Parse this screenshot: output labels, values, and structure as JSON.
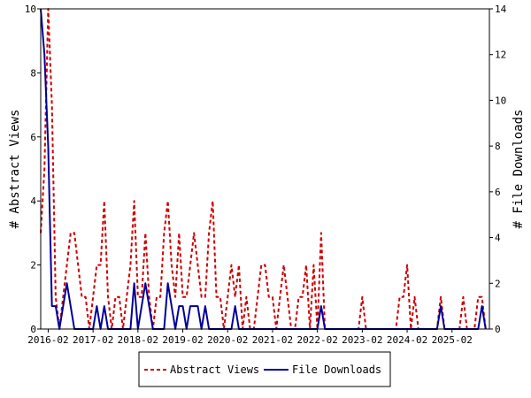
{
  "chart_data": {
    "type": "line",
    "title": "",
    "xlabel": "",
    "ylabel": "# Abstract Views",
    "y2label": "# File Downloads",
    "ylim": [
      0,
      10
    ],
    "y2lim": [
      0,
      14
    ],
    "yticks": [
      "0",
      "2",
      "4",
      "6",
      "8",
      "10"
    ],
    "y2ticks": [
      "0",
      "2",
      "4",
      "6",
      "8",
      "10",
      "12",
      "14"
    ],
    "x_start": "2015-12",
    "x_end": "2025-12",
    "xticks": [
      "2016-02",
      "2017-02",
      "2018-02",
      "2019-02",
      "2020-02",
      "2021-02",
      "2022-02",
      "2023-02",
      "2024-02",
      "2025-02"
    ],
    "grid": false,
    "legend_position": "bottom",
    "colors": {
      "abstract_views": "#cc0000",
      "file_downloads": "#000099"
    },
    "series": [
      {
        "name": "Abstract Views",
        "axis": "left",
        "style": "dashed",
        "points": [
          [
            "2015-12",
            3
          ],
          [
            "2016-01",
            5
          ],
          [
            "2016-02",
            10
          ],
          [
            "2016-03",
            7
          ],
          [
            "2016-04",
            1
          ],
          [
            "2016-05",
            0
          ],
          [
            "2016-06",
            1
          ],
          [
            "2016-07",
            2
          ],
          [
            "2016-08",
            3
          ],
          [
            "2016-09",
            3
          ],
          [
            "2016-10",
            2
          ],
          [
            "2016-11",
            1
          ],
          [
            "2016-12",
            1
          ],
          [
            "2017-01",
            0
          ],
          [
            "2017-02",
            1
          ],
          [
            "2017-03",
            2
          ],
          [
            "2017-04",
            2
          ],
          [
            "2017-05",
            4
          ],
          [
            "2017-06",
            1
          ],
          [
            "2017-07",
            0
          ],
          [
            "2017-08",
            1
          ],
          [
            "2017-09",
            1
          ],
          [
            "2017-10",
            0
          ],
          [
            "2017-11",
            1
          ],
          [
            "2017-12",
            2
          ],
          [
            "2018-01",
            4
          ],
          [
            "2018-02",
            1
          ],
          [
            "2018-03",
            1
          ],
          [
            "2018-04",
            3
          ],
          [
            "2018-05",
            1
          ],
          [
            "2018-06",
            0
          ],
          [
            "2018-07",
            1
          ],
          [
            "2018-08",
            1
          ],
          [
            "2018-09",
            3
          ],
          [
            "2018-10",
            4
          ],
          [
            "2018-11",
            2
          ],
          [
            "2018-12",
            1
          ],
          [
            "2019-01",
            3
          ],
          [
            "2019-02",
            1
          ],
          [
            "2019-03",
            1
          ],
          [
            "2019-04",
            2
          ],
          [
            "2019-05",
            3
          ],
          [
            "2019-06",
            2
          ],
          [
            "2019-07",
            1
          ],
          [
            "2019-08",
            1
          ],
          [
            "2019-09",
            3
          ],
          [
            "2019-10",
            4
          ],
          [
            "2019-11",
            1
          ],
          [
            "2019-12",
            1
          ],
          [
            "2020-01",
            0
          ],
          [
            "2020-02",
            1
          ],
          [
            "2020-03",
            2
          ],
          [
            "2020-04",
            1
          ],
          [
            "2020-05",
            2
          ],
          [
            "2020-06",
            0
          ],
          [
            "2020-07",
            1
          ],
          [
            "2020-08",
            0
          ],
          [
            "2020-09",
            0
          ],
          [
            "2020-10",
            1
          ],
          [
            "2020-11",
            2
          ],
          [
            "2020-12",
            2
          ],
          [
            "2021-01",
            1
          ],
          [
            "2021-02",
            1
          ],
          [
            "2021-03",
            0
          ],
          [
            "2021-04",
            1
          ],
          [
            "2021-05",
            2
          ],
          [
            "2021-06",
            1
          ],
          [
            "2021-07",
            0
          ],
          [
            "2021-08",
            0
          ],
          [
            "2021-09",
            1
          ],
          [
            "2021-10",
            1
          ],
          [
            "2021-11",
            2
          ],
          [
            "2021-12",
            0
          ],
          [
            "2022-01",
            2
          ],
          [
            "2022-02",
            0
          ],
          [
            "2022-03",
            3
          ],
          [
            "2022-04",
            0
          ],
          [
            "2022-05",
            0
          ],
          [
            "2022-06",
            0
          ],
          [
            "2022-07",
            0
          ],
          [
            "2022-08",
            0
          ],
          [
            "2022-09",
            0
          ],
          [
            "2022-10",
            0
          ],
          [
            "2022-11",
            0
          ],
          [
            "2022-12",
            0
          ],
          [
            "2023-01",
            0
          ],
          [
            "2023-02",
            1
          ],
          [
            "2023-03",
            0
          ],
          [
            "2023-04",
            0
          ],
          [
            "2023-05",
            0
          ],
          [
            "2023-06",
            0
          ],
          [
            "2023-07",
            0
          ],
          [
            "2023-08",
            0
          ],
          [
            "2023-09",
            0
          ],
          [
            "2023-10",
            0
          ],
          [
            "2023-11",
            0
          ],
          [
            "2023-12",
            1
          ],
          [
            "2024-01",
            1
          ],
          [
            "2024-02",
            2
          ],
          [
            "2024-03",
            0
          ],
          [
            "2024-04",
            1
          ],
          [
            "2024-05",
            0
          ],
          [
            "2024-06",
            0
          ],
          [
            "2024-07",
            0
          ],
          [
            "2024-08",
            0
          ],
          [
            "2024-09",
            0
          ],
          [
            "2024-10",
            0
          ],
          [
            "2024-11",
            1
          ],
          [
            "2024-12",
            0
          ],
          [
            "2025-01",
            0
          ],
          [
            "2025-02",
            0
          ],
          [
            "2025-03",
            0
          ],
          [
            "2025-04",
            0
          ],
          [
            "2025-05",
            1
          ],
          [
            "2025-06",
            0
          ],
          [
            "2025-07",
            0
          ],
          [
            "2025-08",
            0
          ],
          [
            "2025-09",
            1
          ],
          [
            "2025-10",
            1
          ],
          [
            "2025-11",
            0
          ]
        ]
      },
      {
        "name": "File Downloads",
        "axis": "right",
        "style": "solid",
        "points": [
          [
            "2015-12",
            14
          ],
          [
            "2016-01",
            12
          ],
          [
            "2016-02",
            8
          ],
          [
            "2016-03",
            1
          ],
          [
            "2016-04",
            1
          ],
          [
            "2016-05",
            0
          ],
          [
            "2016-06",
            1
          ],
          [
            "2016-07",
            2
          ],
          [
            "2016-08",
            1
          ],
          [
            "2016-09",
            0
          ],
          [
            "2016-10",
            0
          ],
          [
            "2016-11",
            0
          ],
          [
            "2016-12",
            0
          ],
          [
            "2017-01",
            0
          ],
          [
            "2017-02",
            0
          ],
          [
            "2017-03",
            1
          ],
          [
            "2017-04",
            0
          ],
          [
            "2017-05",
            1
          ],
          [
            "2017-06",
            0
          ],
          [
            "2017-07",
            0
          ],
          [
            "2017-08",
            0
          ],
          [
            "2017-09",
            0
          ],
          [
            "2017-10",
            0
          ],
          [
            "2017-11",
            0
          ],
          [
            "2017-12",
            0
          ],
          [
            "2018-01",
            2
          ],
          [
            "2018-02",
            0
          ],
          [
            "2018-03",
            1
          ],
          [
            "2018-04",
            2
          ],
          [
            "2018-05",
            1
          ],
          [
            "2018-06",
            0
          ],
          [
            "2018-07",
            0
          ],
          [
            "2018-08",
            0
          ],
          [
            "2018-09",
            0
          ],
          [
            "2018-10",
            2
          ],
          [
            "2018-11",
            1
          ],
          [
            "2018-12",
            0
          ],
          [
            "2019-01",
            1
          ],
          [
            "2019-02",
            1
          ],
          [
            "2019-03",
            0
          ],
          [
            "2019-04",
            1
          ],
          [
            "2019-05",
            1
          ],
          [
            "2019-06",
            1
          ],
          [
            "2019-07",
            0
          ],
          [
            "2019-08",
            1
          ],
          [
            "2019-09",
            0
          ],
          [
            "2019-10",
            0
          ],
          [
            "2019-11",
            0
          ],
          [
            "2019-12",
            0
          ],
          [
            "2020-01",
            0
          ],
          [
            "2020-02",
            0
          ],
          [
            "2020-03",
            0
          ],
          [
            "2020-04",
            1
          ],
          [
            "2020-05",
            0
          ],
          [
            "2020-06",
            0
          ],
          [
            "2020-07",
            0
          ],
          [
            "2020-08",
            0
          ],
          [
            "2020-09",
            0
          ],
          [
            "2020-10",
            0
          ],
          [
            "2020-11",
            0
          ],
          [
            "2020-12",
            0
          ],
          [
            "2021-01",
            0
          ],
          [
            "2021-02",
            0
          ],
          [
            "2021-03",
            0
          ],
          [
            "2021-04",
            0
          ],
          [
            "2021-05",
            0
          ],
          [
            "2021-06",
            0
          ],
          [
            "2021-07",
            0
          ],
          [
            "2021-08",
            0
          ],
          [
            "2021-09",
            0
          ],
          [
            "2021-10",
            0
          ],
          [
            "2021-11",
            0
          ],
          [
            "2021-12",
            0
          ],
          [
            "2022-01",
            0
          ],
          [
            "2022-02",
            0
          ],
          [
            "2022-03",
            1
          ],
          [
            "2022-04",
            0
          ],
          [
            "2022-05",
            0
          ],
          [
            "2022-06",
            0
          ],
          [
            "2022-07",
            0
          ],
          [
            "2022-08",
            0
          ],
          [
            "2022-09",
            0
          ],
          [
            "2022-10",
            0
          ],
          [
            "2022-11",
            0
          ],
          [
            "2022-12",
            0
          ],
          [
            "2023-01",
            0
          ],
          [
            "2023-02",
            0
          ],
          [
            "2023-03",
            0
          ],
          [
            "2023-04",
            0
          ],
          [
            "2023-05",
            0
          ],
          [
            "2023-06",
            0
          ],
          [
            "2023-07",
            0
          ],
          [
            "2023-08",
            0
          ],
          [
            "2023-09",
            0
          ],
          [
            "2023-10",
            0
          ],
          [
            "2023-11",
            0
          ],
          [
            "2023-12",
            0
          ],
          [
            "2024-01",
            0
          ],
          [
            "2024-02",
            0
          ],
          [
            "2024-03",
            0
          ],
          [
            "2024-04",
            0
          ],
          [
            "2024-05",
            0
          ],
          [
            "2024-06",
            0
          ],
          [
            "2024-07",
            0
          ],
          [
            "2024-08",
            0
          ],
          [
            "2024-09",
            0
          ],
          [
            "2024-10",
            0
          ],
          [
            "2024-11",
            1
          ],
          [
            "2024-12",
            0
          ],
          [
            "2025-01",
            0
          ],
          [
            "2025-02",
            0
          ],
          [
            "2025-03",
            0
          ],
          [
            "2025-04",
            0
          ],
          [
            "2025-05",
            0
          ],
          [
            "2025-06",
            0
          ],
          [
            "2025-07",
            0
          ],
          [
            "2025-08",
            0
          ],
          [
            "2025-09",
            0
          ],
          [
            "2025-10",
            1
          ],
          [
            "2025-11",
            0
          ]
        ]
      }
    ]
  },
  "legend": {
    "abstract_views_label": "Abstract Views",
    "file_downloads_label": "File Downloads"
  }
}
